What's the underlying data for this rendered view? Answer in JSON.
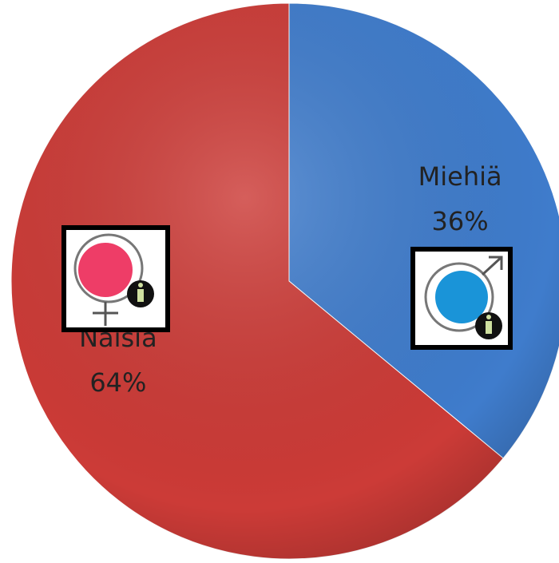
{
  "chart_data": {
    "type": "pie",
    "categories": [
      "Miehiä",
      "Naisia"
    ],
    "values": [
      36,
      64
    ],
    "value_labels": [
      "36%",
      "64%"
    ],
    "colors": [
      "#3f7ccc",
      "#cc3b37"
    ]
  }
}
